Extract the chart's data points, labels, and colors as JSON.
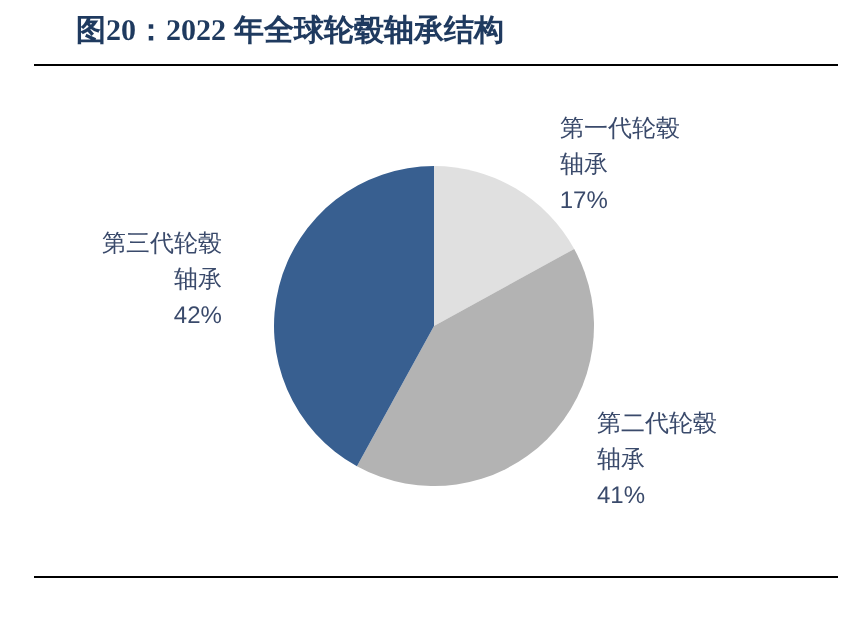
{
  "chart_data": {
    "type": "pie",
    "title": "图20：2022 年全球轮毂轴承结构",
    "categories": [
      "第一代轮毂轴承",
      "第二代轮毂轴承",
      "第三代轮毂轴承"
    ],
    "values": [
      17,
      41,
      42
    ],
    "colors": [
      "#e0e0e0",
      "#b3b3b3",
      "#385f90"
    ],
    "value_labels": [
      "17%",
      "41%",
      "42%"
    ],
    "legend": false
  }
}
